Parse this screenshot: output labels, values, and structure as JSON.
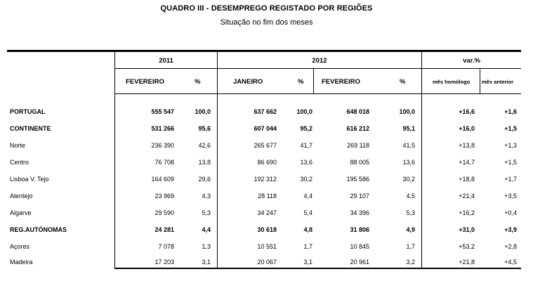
{
  "title": "QUADRO III - DESEMPREGO REGISTADO POR REGIÕES",
  "subtitle": "Situação no fim dos meses",
  "headers": {
    "year_2011": "2011",
    "year_2012": "2012",
    "var": "var.%",
    "fev_2011": "FEVEREIRO",
    "pct_2011": "%",
    "jan_2012": "JANEIRO",
    "pct_jan": "%",
    "fev_2012": "FEVEREIRO",
    "pct_fev": "%",
    "mes_homologo": "mês homólogo",
    "mes_anterior": "mês  anterior"
  },
  "rows": [
    {
      "region": "PORTUGAL",
      "fev2011": "555 547",
      "pct2011": "100,0",
      "jan2012": "637 662",
      "pctjan": "100,0",
      "fev2012": "648 018",
      "pctfev": "100,0",
      "homologo": "+16,6",
      "anterior": "+1,6"
    },
    {
      "region": "CONTINENTE",
      "fev2011": "531 266",
      "pct2011": "95,6",
      "jan2012": "607 044",
      "pctjan": "95,2",
      "fev2012": "616 212",
      "pctfev": "95,1",
      "homologo": "+16,0",
      "anterior": "+1,5"
    },
    {
      "region": "Norte",
      "fev2011": "236 390",
      "pct2011": "42,6",
      "jan2012": "265 677",
      "pctjan": "41,7",
      "fev2012": "269 118",
      "pctfev": "41,5",
      "homologo": "+13,8",
      "anterior": "+1,3"
    },
    {
      "region": "Centro",
      "fev2011": "76 708",
      "pct2011": "13,8",
      "jan2012": "86 690",
      "pctjan": "13,6",
      "fev2012": "88 005",
      "pctfev": "13,6",
      "homologo": "+14,7",
      "anterior": "+1,5"
    },
    {
      "region": "Lisboa V. Tejo",
      "fev2011": "164 609",
      "pct2011": "29,6",
      "jan2012": "192 312",
      "pctjan": "30,2",
      "fev2012": "195 586",
      "pctfev": "30,2",
      "homologo": "+18,8",
      "anterior": "+1,7"
    },
    {
      "region": "Alentejo",
      "fev2011": "23 969",
      "pct2011": "4,3",
      "jan2012": "28 118",
      "pctjan": "4,4",
      "fev2012": "29 107",
      "pctfev": "4,5",
      "homologo": "+21,4",
      "anterior": "+3,5"
    },
    {
      "region": "Algarve",
      "fev2011": "29 590",
      "pct2011": "5,3",
      "jan2012": "34 247",
      "pctjan": "5,4",
      "fev2012": "34 396",
      "pctfev": "5,3",
      "homologo": "+16,2",
      "anterior": "+0,4"
    },
    {
      "region": "REG.AUTÓNOMAS",
      "fev2011": "24 281",
      "pct2011": "4,4",
      "jan2012": "30 618",
      "pctjan": "4,8",
      "fev2012": "31 806",
      "pctfev": "4,9",
      "homologo": "+31,0",
      "anterior": "+3,9"
    },
    {
      "region": "Açores",
      "fev2011": "7 078",
      "pct2011": "1,3",
      "jan2012": "10 551",
      "pctjan": "1,7",
      "fev2012": "10 845",
      "pctfev": "1,7",
      "homologo": "+53,2",
      "anterior": "+2,8"
    },
    {
      "region": "Madeira",
      "fev2011": "17 203",
      "pct2011": "3,1",
      "jan2012": "20 067",
      "pctjan": "3,1",
      "fev2012": "20 961",
      "pctfev": "3,2",
      "homologo": "+21,8",
      "anterior": "+4,5"
    }
  ]
}
